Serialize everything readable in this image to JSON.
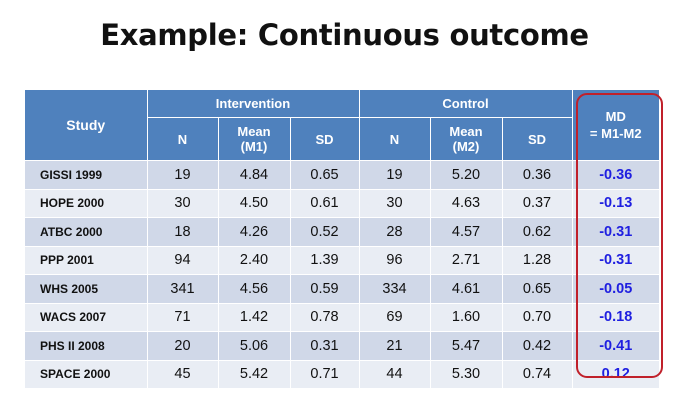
{
  "title": "Example: Continuous outcome",
  "table": {
    "study_header": "Study",
    "group_headers": [
      "Intervention",
      "Control"
    ],
    "sub_headers": [
      "N",
      "Mean\n(M1)",
      "SD",
      "N",
      "Mean\n(M2)",
      "SD"
    ],
    "md_header": [
      "MD",
      "= M1-M2"
    ],
    "rows": [
      {
        "study": "GISSI 1999",
        "n1": "19",
        "m1": "4.84",
        "sd1": "0.65",
        "n2": "19",
        "m2": "5.20",
        "sd2": "0.36",
        "md": "-0.36"
      },
      {
        "study": "HOPE 2000",
        "n1": "30",
        "m1": "4.50",
        "sd1": "0.61",
        "n2": "30",
        "m2": "4.63",
        "sd2": "0.37",
        "md": "-0.13"
      },
      {
        "study": "ATBC 2000",
        "n1": "18",
        "m1": "4.26",
        "sd1": "0.52",
        "n2": "28",
        "m2": "4.57",
        "sd2": "0.62",
        "md": "-0.31"
      },
      {
        "study": "PPP 2001",
        "n1": "94",
        "m1": "2.40",
        "sd1": "1.39",
        "n2": "96",
        "m2": "2.71",
        "sd2": "1.28",
        "md": "-0.31"
      },
      {
        "study": "WHS 2005",
        "n1": "341",
        "m1": "4.56",
        "sd1": "0.59",
        "n2": "334",
        "m2": "4.61",
        "sd2": "0.65",
        "md": "-0.05"
      },
      {
        "study": "WACS 2007",
        "n1": "71",
        "m1": "1.42",
        "sd1": "0.78",
        "n2": "69",
        "m2": "1.60",
        "sd2": "0.70",
        "md": "-0.18"
      },
      {
        "study": "PHS II 2008",
        "n1": "20",
        "m1": "5.06",
        "sd1": "0.31",
        "n2": "21",
        "m2": "5.47",
        "sd2": "0.42",
        "md": "-0.41"
      },
      {
        "study": "SPACE 2000",
        "n1": "45",
        "m1": "5.42",
        "sd1": "0.71",
        "n2": "44",
        "m2": "5.30",
        "sd2": "0.74",
        "md": "0.12"
      }
    ]
  },
  "colors": {
    "header_blue": "#4f81bd",
    "row_dark": "#d0d8e8",
    "row_light": "#e9edf4",
    "md_text": "#1f1fe0",
    "highlight_border": "#c0202a"
  }
}
